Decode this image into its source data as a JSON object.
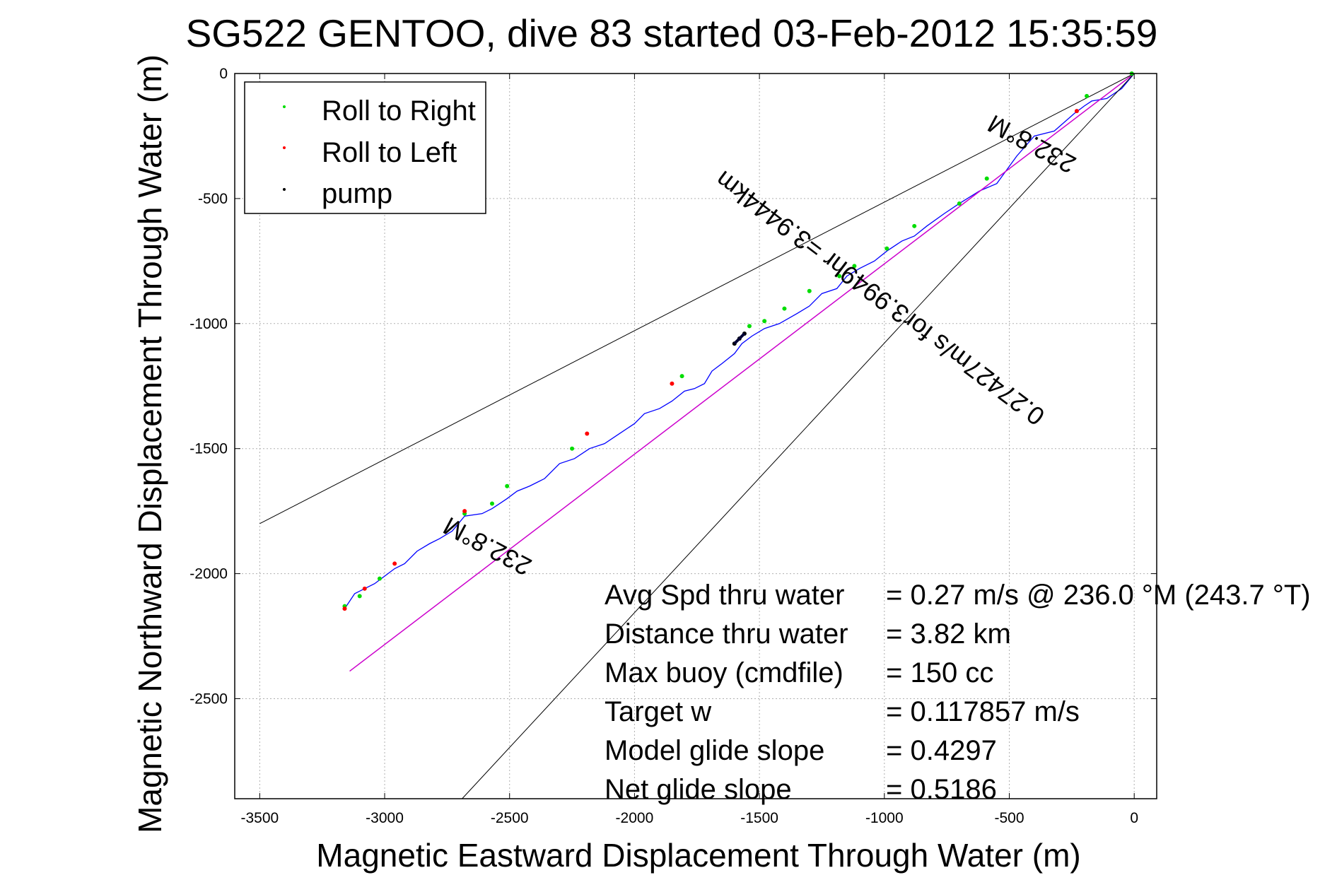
{
  "chart_data": {
    "type": "line",
    "title": "SG522 GENTOO, dive 83 started 03-Feb-2012 15:35:59",
    "xlabel": "Magnetic Eastward Displacement Through Water (m)",
    "ylabel": "Magnetic Northward Displacement Through Water (m)",
    "xlim": [
      -3600,
      90
    ],
    "ylim": [
      -2900,
      0
    ],
    "xticks": [
      -3500,
      -3000,
      -2500,
      -2000,
      -1500,
      -1000,
      -500,
      0
    ],
    "yticks": [
      0,
      -500,
      -1000,
      -1500,
      -2000,
      -2500
    ],
    "grid": true,
    "legend_position": "top-left",
    "legend": [
      {
        "label": "Roll to Right",
        "color": "#00dd00"
      },
      {
        "label": "Roll to Left",
        "color": "#ff0000"
      },
      {
        "label": "pump",
        "color": "#000000"
      }
    ],
    "series": [
      {
        "kind": "track",
        "color": "#0000ff",
        "x": [
          0,
          -50,
          -110,
          -170,
          -200,
          -240,
          -320,
          -400,
          -470,
          -550,
          -620,
          -700,
          -760,
          -830,
          -880,
          -930,
          -990,
          -1040,
          -1100,
          -1150,
          -1190,
          -1250,
          -1300,
          -1350,
          -1420,
          -1480,
          -1530,
          -1570,
          -1600,
          -1650,
          -1690,
          -1720,
          -1760,
          -1800,
          -1850,
          -1900,
          -1960,
          -2000,
          -2060,
          -2120,
          -2180,
          -2240,
          -2300,
          -2360,
          -2420,
          -2470,
          -2510,
          -2540,
          -2570,
          -2610,
          -2680,
          -2730,
          -2780,
          -2820,
          -2870,
          -2920,
          -2960,
          -3000,
          -3040,
          -3080,
          -3120,
          -3160
        ],
        "y": [
          0,
          -60,
          -100,
          -110,
          -130,
          -160,
          -230,
          -250,
          -330,
          -440,
          -470,
          -520,
          -560,
          -610,
          -650,
          -670,
          -710,
          -750,
          -780,
          -810,
          -860,
          -880,
          -930,
          -960,
          -1000,
          -1020,
          -1050,
          -1080,
          -1120,
          -1160,
          -1190,
          -1240,
          -1260,
          -1270,
          -1310,
          -1340,
          -1360,
          -1400,
          -1440,
          -1480,
          -1500,
          -1540,
          -1560,
          -1620,
          -1650,
          -1670,
          -1700,
          -1720,
          -1740,
          -1760,
          -1770,
          -1830,
          -1860,
          -1880,
          -1910,
          -1960,
          -1980,
          -2010,
          -2040,
          -2060,
          -2080,
          -2140
        ]
      },
      {
        "kind": "heading-line",
        "color": "#cc00cc",
        "x": [
          0,
          -3140
        ],
        "y": [
          0,
          -2390
        ]
      },
      {
        "kind": "bound",
        "color": "#000000",
        "x": [
          0,
          -3500
        ],
        "y": [
          0,
          -1800
        ]
      },
      {
        "kind": "bound",
        "color": "#000000",
        "x": [
          0,
          -2690
        ],
        "y": [
          0,
          -2900
        ]
      },
      {
        "name": "Roll to Right",
        "kind": "markers",
        "color": "#00dd00",
        "x": [
          -10,
          -190,
          -590,
          -700,
          -880,
          -990,
          -1120,
          -1180,
          -1300,
          -1400,
          -1480,
          -1540,
          -1810,
          -2250,
          -2510,
          -2570,
          -2680,
          -3020,
          -3100,
          -3160
        ],
        "y": [
          0,
          -90,
          -420,
          -520,
          -610,
          -700,
          -770,
          -810,
          -870,
          -940,
          -990,
          -1010,
          -1210,
          -1500,
          -1650,
          -1720,
          -1760,
          -2020,
          -2090,
          -2130
        ]
      },
      {
        "name": "Roll to Left",
        "kind": "markers",
        "color": "#ff0000",
        "x": [
          -230,
          -1850,
          -2190,
          -2680,
          -2960,
          -3080,
          -3160
        ],
        "y": [
          -150,
          -1240,
          -1440,
          -1750,
          -1960,
          -2060,
          -2140
        ]
      },
      {
        "name": "pump",
        "kind": "markers",
        "color": "#000000",
        "x": [
          -1560,
          -1580,
          -1600
        ],
        "y": [
          -1040,
          -1060,
          -1080
        ]
      }
    ],
    "annotations": {
      "heading_upper": "232.8°M",
      "heading_lower": "232.8°M",
      "speed_line": "0.27427m/s for3.9949hr =3.9444km",
      "stats": [
        {
          "label": "Avg Spd thru water",
          "value": "=  0.27 m/s @ 236.0 °M (243.7 °T)"
        },
        {
          "label": "Distance thru water",
          "value": "=  3.82 km"
        },
        {
          "label": "Max buoy (cmdfile)",
          "value": "= 150 cc"
        },
        {
          "label": "Target w",
          "value": "= 0.117857 m/s"
        },
        {
          "label": "Model glide slope",
          "value": "= 0.4297"
        },
        {
          "label": "Net glide slope",
          "value": "= 0.5186"
        }
      ]
    }
  }
}
